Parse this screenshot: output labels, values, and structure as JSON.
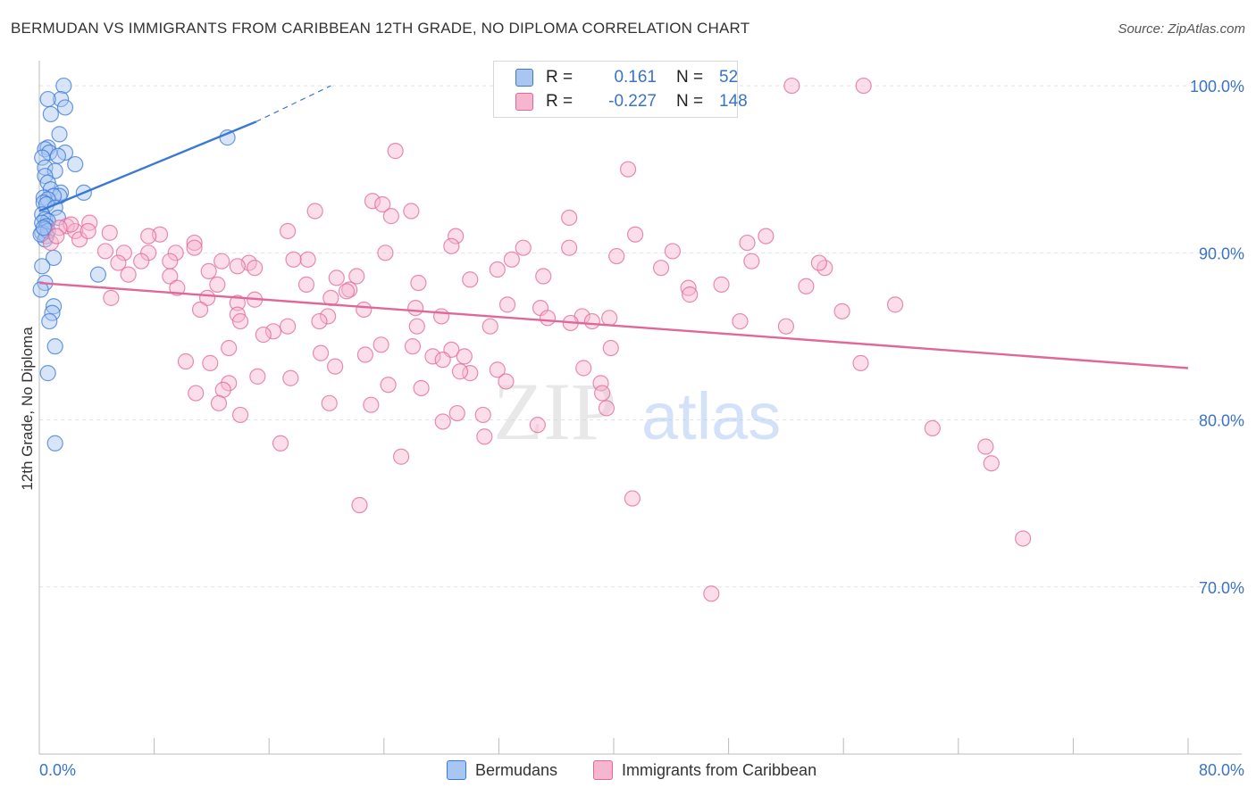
{
  "title": "BERMUDAN VS IMMIGRANTS FROM CARIBBEAN 12TH GRADE, NO DIPLOMA CORRELATION CHART",
  "source": "Source: ZipAtlas.com",
  "watermark": {
    "zip": "ZIP",
    "atlas": "atlas"
  },
  "legend": {
    "series1": {
      "r_label": "R =",
      "r_value": "0.161",
      "n_label": "N =",
      "n_value": "52"
    },
    "series2": {
      "r_label": "R =",
      "r_value": "-0.227",
      "n_label": "N =",
      "n_value": "148"
    }
  },
  "colors": {
    "blue": "#3a78d4",
    "blue_fill": "#a9c6f2",
    "pink": "#e0679a",
    "pink_fill": "#f6b6cd",
    "tick_text": "#3a73c8"
  },
  "chart_data": {
    "type": "scatter",
    "title": "BERMUDAN VS IMMIGRANTS FROM CARIBBEAN 12TH GRADE, NO DIPLOMA CORRELATION CHART",
    "xlabel": "",
    "ylabel": "12th Grade, No Diploma",
    "xlim": [
      0,
      80
    ],
    "ylim": [
      60,
      101.5
    ],
    "x_tick_labels": [
      "0.0%",
      "80.0%"
    ],
    "y_ticks": [
      70,
      80,
      90,
      100
    ],
    "y_tick_labels": [
      "70.0%",
      "80.0%",
      "90.0%",
      "100.0%"
    ],
    "grid": true,
    "legend_position": "bottom",
    "series": [
      {
        "name": "Bermudans",
        "color": "#3a78d4",
        "R": 0.161,
        "N": 52,
        "trend": {
          "x0": 0,
          "y0": 92.5,
          "x1": 15.1,
          "y1": 97.85,
          "dash_to_x": 20.3,
          "dash_to_y": 100.0
        },
        "points": [
          [
            1.7,
            100
          ],
          [
            1.5,
            99.2
          ],
          [
            0.6,
            99.2
          ],
          [
            1.8,
            98.7
          ],
          [
            0.8,
            98.3
          ],
          [
            1.4,
            97.1
          ],
          [
            13.1,
            96.9
          ],
          [
            0.6,
            96.3
          ],
          [
            0.4,
            96.2
          ],
          [
            0.7,
            96.0
          ],
          [
            1.8,
            96.0
          ],
          [
            1.3,
            95.8
          ],
          [
            0.2,
            95.7
          ],
          [
            2.5,
            95.3
          ],
          [
            0.4,
            95.1
          ],
          [
            1.1,
            94.9
          ],
          [
            0.4,
            94.6
          ],
          [
            0.6,
            94.2
          ],
          [
            0.8,
            93.8
          ],
          [
            1.5,
            93.6
          ],
          [
            3.1,
            93.6
          ],
          [
            1.4,
            93.4
          ],
          [
            1.0,
            93.4
          ],
          [
            0.3,
            93.3
          ],
          [
            0.6,
            93.2
          ],
          [
            0.3,
            93.0
          ],
          [
            0.5,
            92.9
          ],
          [
            1.1,
            92.7
          ],
          [
            0.2,
            92.3
          ],
          [
            0.4,
            92.0
          ],
          [
            1.3,
            92.1
          ],
          [
            0.6,
            91.9
          ],
          [
            0.2,
            91.8
          ],
          [
            0.5,
            91.6
          ],
          [
            0.4,
            91.4
          ],
          [
            0.2,
            91.2
          ],
          [
            0.5,
            91.0
          ],
          [
            0.4,
            90.8
          ],
          [
            0.6,
            91.3
          ],
          [
            0.1,
            91.1
          ],
          [
            1.0,
            89.7
          ],
          [
            0.2,
            89.2
          ],
          [
            4.1,
            88.7
          ],
          [
            0.4,
            88.2
          ],
          [
            0.1,
            87.8
          ],
          [
            1.0,
            86.8
          ],
          [
            0.9,
            86.4
          ],
          [
            0.7,
            85.9
          ],
          [
            1.1,
            84.4
          ],
          [
            0.6,
            82.8
          ],
          [
            1.1,
            78.6
          ],
          [
            0.3,
            91.5
          ]
        ]
      },
      {
        "name": "Immigrants from Caribbean",
        "color": "#e0679a",
        "R": -0.227,
        "N": 148,
        "trend": {
          "x0": 0,
          "y0": 88.2,
          "x1": 80,
          "y1": 83.1
        },
        "points": [
          [
            52.4,
            100
          ],
          [
            57.4,
            100
          ],
          [
            24.8,
            96.1
          ],
          [
            41.0,
            95.0
          ],
          [
            23.2,
            93.1
          ],
          [
            23.9,
            92.9
          ],
          [
            19.2,
            92.5
          ],
          [
            25.9,
            92.5
          ],
          [
            24.5,
            92.2
          ],
          [
            36.9,
            92.1
          ],
          [
            1.9,
            91.6
          ],
          [
            2.5,
            91.3
          ],
          [
            2.2,
            91.7
          ],
          [
            3.5,
            91.8
          ],
          [
            1.4,
            91.5
          ],
          [
            4.9,
            91.2
          ],
          [
            17.3,
            91.3
          ],
          [
            41.5,
            91.1
          ],
          [
            29.0,
            91.0
          ],
          [
            2.8,
            90.8
          ],
          [
            3.4,
            91.3
          ],
          [
            0.8,
            90.6
          ],
          [
            1.2,
            91.0
          ],
          [
            8.4,
            91.1
          ],
          [
            7.6,
            91.0
          ],
          [
            50.6,
            91.0
          ],
          [
            49.3,
            90.6
          ],
          [
            28.7,
            90.4
          ],
          [
            10.8,
            90.6
          ],
          [
            33.7,
            90.3
          ],
          [
            36.9,
            90.3
          ],
          [
            4.6,
            90.1
          ],
          [
            5.9,
            90.0
          ],
          [
            7.6,
            90.0
          ],
          [
            9.5,
            90.0
          ],
          [
            10.8,
            90.3
          ],
          [
            24.1,
            90.0
          ],
          [
            44.1,
            90.1
          ],
          [
            40.2,
            89.8
          ],
          [
            18.7,
            89.6
          ],
          [
            9.1,
            89.5
          ],
          [
            12.7,
            89.5
          ],
          [
            17.7,
            89.6
          ],
          [
            5.5,
            89.4
          ],
          [
            7.1,
            89.5
          ],
          [
            14.6,
            89.4
          ],
          [
            32.9,
            89.6
          ],
          [
            43.3,
            89.1
          ],
          [
            49.6,
            89.5
          ],
          [
            15.0,
            89.1
          ],
          [
            13.8,
            89.2
          ],
          [
            31.9,
            89.0
          ],
          [
            54.7,
            89.1
          ],
          [
            11.8,
            88.9
          ],
          [
            6.2,
            88.7
          ],
          [
            9.1,
            88.6
          ],
          [
            22.1,
            88.6
          ],
          [
            20.7,
            88.5
          ],
          [
            30.0,
            88.4
          ],
          [
            35.1,
            88.6
          ],
          [
            12.4,
            88.1
          ],
          [
            18.6,
            88.1
          ],
          [
            26.4,
            88.2
          ],
          [
            47.5,
            88.1
          ],
          [
            53.4,
            88.0
          ],
          [
            45.2,
            87.9
          ],
          [
            9.6,
            87.9
          ],
          [
            21.6,
            87.8
          ],
          [
            21.4,
            87.7
          ],
          [
            45.3,
            87.5
          ],
          [
            5.0,
            87.3
          ],
          [
            11.7,
            87.3
          ],
          [
            15.0,
            87.2
          ],
          [
            20.3,
            87.3
          ],
          [
            13.8,
            87.0
          ],
          [
            26.2,
            86.7
          ],
          [
            32.6,
            86.9
          ],
          [
            59.6,
            86.9
          ],
          [
            11.2,
            86.6
          ],
          [
            22.6,
            86.6
          ],
          [
            34.9,
            86.7
          ],
          [
            13.8,
            86.3
          ],
          [
            37.8,
            86.2
          ],
          [
            28.0,
            86.2
          ],
          [
            35.4,
            86.1
          ],
          [
            39.7,
            86.1
          ],
          [
            48.8,
            85.9
          ],
          [
            20.1,
            86.2
          ],
          [
            19.5,
            85.9
          ],
          [
            14.0,
            85.9
          ],
          [
            38.5,
            85.9
          ],
          [
            37.0,
            85.8
          ],
          [
            31.4,
            85.6
          ],
          [
            26.3,
            85.6
          ],
          [
            17.3,
            85.6
          ],
          [
            16.3,
            85.3
          ],
          [
            52.0,
            85.6
          ],
          [
            55.9,
            86.5
          ],
          [
            15.6,
            85.1
          ],
          [
            23.8,
            84.5
          ],
          [
            13.2,
            84.3
          ],
          [
            26.0,
            84.4
          ],
          [
            28.7,
            84.2
          ],
          [
            39.8,
            84.3
          ],
          [
            19.6,
            84.0
          ],
          [
            22.7,
            83.9
          ],
          [
            27.4,
            83.8
          ],
          [
            10.2,
            83.5
          ],
          [
            28.1,
            83.6
          ],
          [
            20.6,
            83.2
          ],
          [
            29.6,
            83.8
          ],
          [
            57.2,
            83.4
          ],
          [
            11.9,
            83.4
          ],
          [
            31.9,
            83.0
          ],
          [
            37.9,
            83.1
          ],
          [
            30.0,
            82.8
          ],
          [
            15.2,
            82.6
          ],
          [
            17.5,
            82.5
          ],
          [
            29.3,
            82.9
          ],
          [
            39.1,
            82.2
          ],
          [
            32.5,
            82.3
          ],
          [
            13.2,
            82.2
          ],
          [
            24.3,
            82.1
          ],
          [
            12.8,
            81.8
          ],
          [
            26.6,
            81.9
          ],
          [
            10.9,
            81.6
          ],
          [
            39.2,
            81.6
          ],
          [
            20.2,
            81.0
          ],
          [
            12.5,
            81.0
          ],
          [
            23.1,
            80.9
          ],
          [
            39.5,
            80.7
          ],
          [
            29.1,
            80.4
          ],
          [
            30.9,
            80.3
          ],
          [
            14.0,
            80.3
          ],
          [
            28.1,
            79.9
          ],
          [
            34.7,
            79.7
          ],
          [
            62.2,
            79.5
          ],
          [
            31.0,
            79.0
          ],
          [
            16.8,
            78.6
          ],
          [
            65.9,
            78.4
          ],
          [
            66.3,
            77.4
          ],
          [
            25.2,
            77.8
          ],
          [
            41.3,
            75.3
          ],
          [
            22.3,
            74.9
          ],
          [
            68.5,
            72.9
          ],
          [
            46.8,
            69.6
          ],
          [
            54.3,
            89.4
          ]
        ]
      }
    ]
  },
  "bottom_legend": {
    "series1": "Bermudans",
    "series2": "Immigrants from Caribbean"
  }
}
